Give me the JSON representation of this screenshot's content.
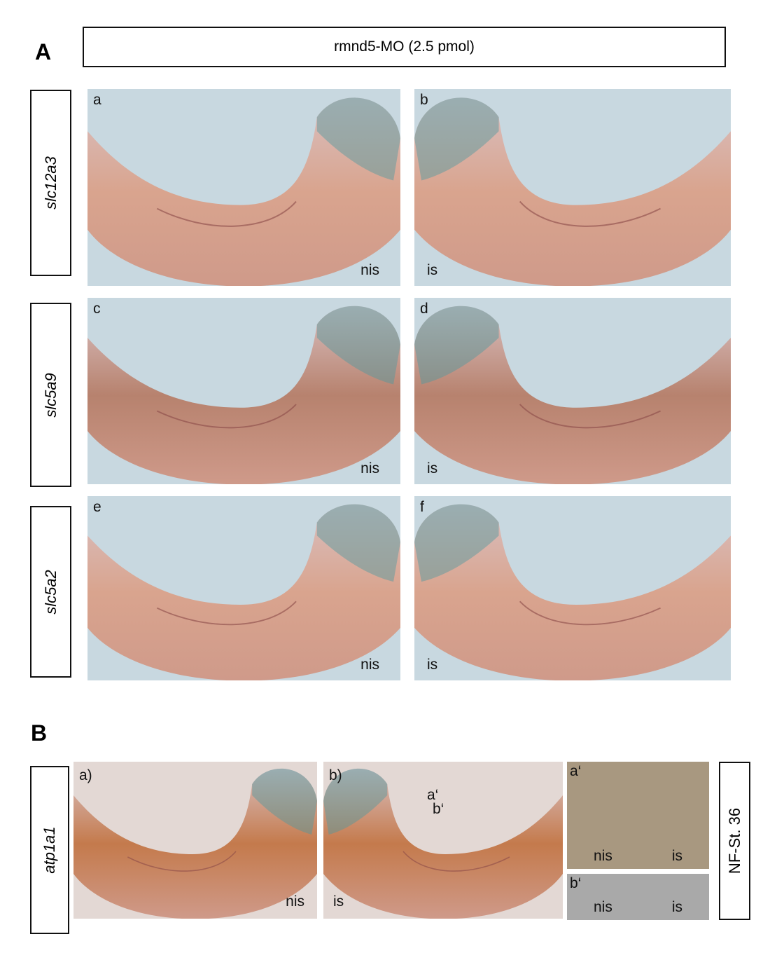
{
  "panel_a": {
    "label": "A",
    "header": "rmnd5-MO (2.5 pmol)",
    "rows": [
      {
        "gene": "slc12a3",
        "images": [
          {
            "letter": "a",
            "side": "nis"
          },
          {
            "letter": "b",
            "side": "is"
          }
        ]
      },
      {
        "gene": "slc5a9",
        "images": [
          {
            "letter": "c",
            "side": "nis"
          },
          {
            "letter": "d",
            "side": "is"
          }
        ]
      },
      {
        "gene": "slc5a2",
        "images": [
          {
            "letter": "e",
            "side": "nis"
          },
          {
            "letter": "f",
            "side": "is"
          }
        ]
      }
    ]
  },
  "panel_b": {
    "label": "B",
    "gene": "atp1a1",
    "images": [
      {
        "letter": "a)",
        "side": "nis"
      },
      {
        "letter": "b)",
        "side": "is",
        "markers": [
          "a‘",
          "b‘"
        ]
      }
    ],
    "insets": [
      {
        "letter": "a‘",
        "left": "nis",
        "right": "is"
      },
      {
        "letter": "b‘",
        "left": "nis",
        "right": "is"
      }
    ],
    "stage": "NF-St. 36"
  }
}
